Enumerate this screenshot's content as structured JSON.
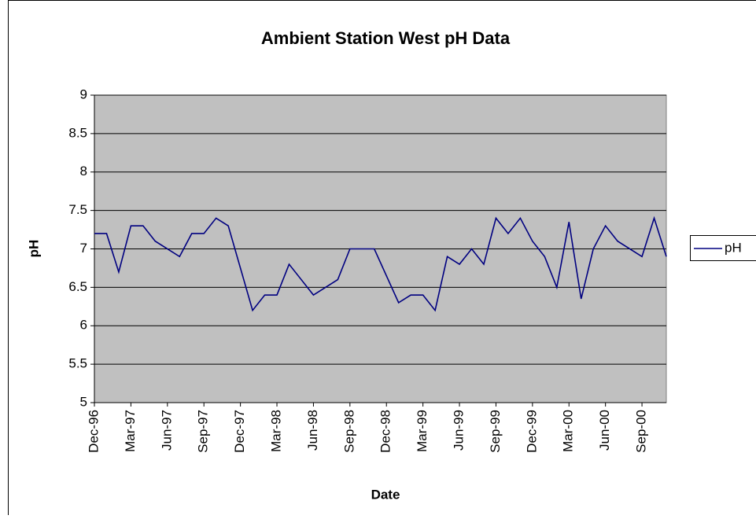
{
  "chart_data": {
    "type": "line",
    "title": "Ambient Station West pH Data",
    "x_label": "Date",
    "y_label": "pH",
    "x": [
      "1996-12",
      "1997-01",
      "1997-02",
      "1997-03",
      "1997-04",
      "1997-05",
      "1997-07",
      "1997-08",
      "1997-09",
      "1997-10",
      "1997-11",
      "1998-01",
      "1998-02",
      "1998-03",
      "1998-04",
      "1998-06",
      "1998-08",
      "1998-09",
      "1998-11",
      "1999-01",
      "1999-02",
      "1999-03",
      "1999-04",
      "1999-05",
      "1999-06",
      "1999-07",
      "1999-08",
      "1999-09",
      "1999-10",
      "1999-11",
      "1999-12",
      "2000-01",
      "2000-02",
      "2000-03",
      "2000-04",
      "2000-05",
      "2000-06",
      "2000-07",
      "2000-09",
      "2000-10",
      "2000-11"
    ],
    "series": [
      {
        "name": "pH",
        "color": "#000080",
        "values": [
          7.2,
          7.2,
          6.7,
          7.3,
          7.3,
          7.1,
          6.9,
          7.2,
          7.2,
          7.4,
          7.3,
          6.2,
          6.4,
          6.4,
          6.8,
          6.4,
          6.6,
          7.0,
          7.0,
          6.3,
          6.4,
          6.4,
          6.2,
          6.9,
          6.8,
          7.0,
          6.8,
          7.4,
          7.2,
          7.4,
          7.1,
          6.9,
          6.5,
          7.35,
          6.35,
          7.0,
          7.3,
          7.1,
          6.9,
          7.4,
          6.9
        ]
      }
    ],
    "xlim": [
      "1996-12",
      "2000-11"
    ],
    "xticks": [
      {
        "value": "1996-12",
        "label": "Dec-96"
      },
      {
        "value": "1997-03",
        "label": "Mar-97"
      },
      {
        "value": "1997-06",
        "label": "Jun-97"
      },
      {
        "value": "1997-09",
        "label": "Sep-97"
      },
      {
        "value": "1997-12",
        "label": "Dec-97"
      },
      {
        "value": "1998-03",
        "label": "Mar-98"
      },
      {
        "value": "1998-06",
        "label": "Jun-98"
      },
      {
        "value": "1998-09",
        "label": "Sep-98"
      },
      {
        "value": "1998-12",
        "label": "Dec-98"
      },
      {
        "value": "1999-03",
        "label": "Mar-99"
      },
      {
        "value": "1999-06",
        "label": "Jun-99"
      },
      {
        "value": "1999-09",
        "label": "Sep-99"
      },
      {
        "value": "1999-12",
        "label": "Dec-99"
      },
      {
        "value": "2000-03",
        "label": "Mar-00"
      },
      {
        "value": "2000-06",
        "label": "Jun-00"
      },
      {
        "value": "2000-09",
        "label": "Sep-00"
      }
    ],
    "ylim": [
      5,
      9
    ],
    "yticks": [
      5,
      5.5,
      6,
      6.5,
      7,
      7.5,
      8,
      8.5,
      9
    ],
    "grid": true,
    "legend": "right",
    "plot_background": "#c0c0c0"
  }
}
